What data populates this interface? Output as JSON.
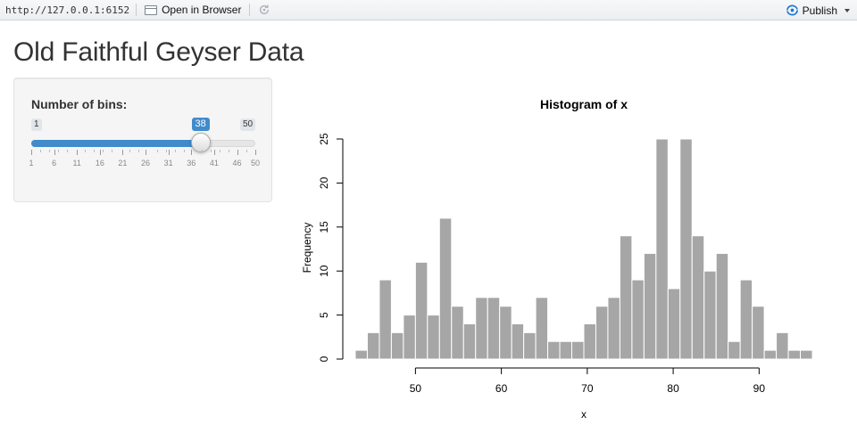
{
  "toolbar": {
    "url": "http://127.0.0.1:6152",
    "open_in_browser": "Open in Browser",
    "publish": "Publish"
  },
  "page": {
    "title": "Old Faithful Geyser Data"
  },
  "slider": {
    "label": "Number of bins:",
    "min": 1,
    "max": 50,
    "value": 38,
    "min_label": "1",
    "max_label": "50",
    "value_label": "38",
    "grid_labels": [
      "1",
      "6",
      "11",
      "16",
      "21",
      "26",
      "31",
      "36",
      "41",
      "46",
      "50"
    ],
    "grid_values": [
      1,
      6,
      11,
      16,
      21,
      26,
      31,
      36,
      41,
      46,
      50
    ],
    "accent": "#428bca"
  },
  "chart_data": {
    "type": "bar",
    "title": "Histogram of x",
    "xlabel": "x",
    "ylabel": "Frequency",
    "bin_width": 1.4,
    "bin_start": 43.0,
    "values": [
      1,
      3,
      9,
      3,
      5,
      11,
      5,
      16,
      6,
      4,
      7,
      7,
      6,
      4,
      3,
      7,
      2,
      2,
      2,
      4,
      6,
      7,
      14,
      9,
      12,
      25,
      8,
      25,
      14,
      10,
      12,
      2,
      9,
      6,
      1,
      3,
      1,
      1
    ],
    "xlim": [
      43,
      96.2
    ],
    "ylim": [
      0,
      25
    ],
    "xticks": [
      50,
      60,
      70,
      80,
      90
    ],
    "yticks": [
      0,
      5,
      10,
      15,
      20,
      25
    ],
    "bar_color": "#a6a6a6",
    "grid": false
  }
}
